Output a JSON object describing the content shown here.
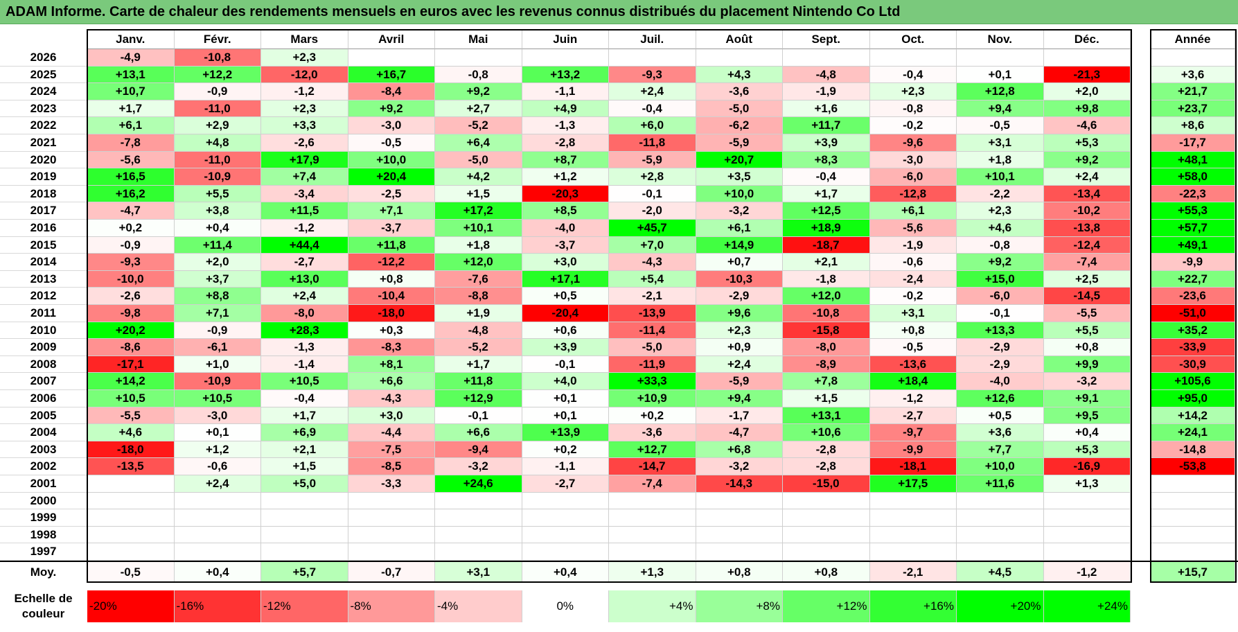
{
  "header": {
    "title": "ADAM Informe. Carte de chaleur des rendements mensuels en euros avec les revenus connus distribués du placement Nintendo Co Ltd"
  },
  "colors": {
    "green_max": "#00ff00",
    "red_max": "#ff0000",
    "title_bg": "#7ac97c"
  },
  "chart_data": {
    "type": "heatmap",
    "title": "ADAM Informe. Carte de chaleur des rendements mensuels en euros avec les revenus connus distribués du placement Nintendo Co Ltd",
    "months": [
      "Janv.",
      "Févr.",
      "Mars",
      "Avril",
      "Mai",
      "Juin",
      "Juil.",
      "Août",
      "Sept.",
      "Oct.",
      "Nov.",
      "Déc."
    ],
    "year_column_label": "Année",
    "rows": [
      {
        "year": "2026",
        "months": [
          "-4,9",
          "-10,8",
          "+2,3",
          "",
          "",
          "",
          "",
          "",
          "",
          "",
          "",
          ""
        ],
        "annual": ""
      },
      {
        "year": "2025",
        "months": [
          "+13,1",
          "+12,2",
          "-12,0",
          "+16,7",
          "-0,8",
          "+13,2",
          "-9,3",
          "+4,3",
          "-4,8",
          "-0,4",
          "+0,1",
          "-21,3"
        ],
        "annual": "+3,6"
      },
      {
        "year": "2024",
        "months": [
          "+10,7",
          "-0,9",
          "-1,2",
          "-8,4",
          "+9,2",
          "-1,1",
          "+2,4",
          "-3,6",
          "-1,9",
          "+2,3",
          "+12,8",
          "+2,0"
        ],
        "annual": "+21,7"
      },
      {
        "year": "2023",
        "months": [
          "+1,7",
          "-11,0",
          "+2,3",
          "+9,2",
          "+2,7",
          "+4,9",
          "-0,4",
          "-5,0",
          "+1,6",
          "-0,8",
          "+9,4",
          "+9,8"
        ],
        "annual": "+23,7"
      },
      {
        "year": "2022",
        "months": [
          "+6,1",
          "+2,9",
          "+3,3",
          "-3,0",
          "-5,2",
          "-1,3",
          "+6,0",
          "-6,2",
          "+11,7",
          "-0,2",
          "-0,5",
          "-4,6"
        ],
        "annual": "+8,6"
      },
      {
        "year": "2021",
        "months": [
          "-7,8",
          "+4,8",
          "-2,6",
          "-0,5",
          "+6,4",
          "-2,8",
          "-11,8",
          "-5,9",
          "+3,9",
          "-9,6",
          "+3,1",
          "+5,3"
        ],
        "annual": "-17,7"
      },
      {
        "year": "2020",
        "months": [
          "-5,6",
          "-11,0",
          "+17,9",
          "+10,0",
          "-5,0",
          "+8,7",
          "-5,9",
          "+20,7",
          "+8,3",
          "-3,0",
          "+1,8",
          "+9,2"
        ],
        "annual": "+48,1"
      },
      {
        "year": "2019",
        "months": [
          "+16,5",
          "-10,9",
          "+7,4",
          "+20,4",
          "+4,2",
          "+1,2",
          "+2,8",
          "+3,5",
          "-0,4",
          "-6,0",
          "+10,1",
          "+2,4"
        ],
        "annual": "+58,0"
      },
      {
        "year": "2018",
        "months": [
          "+16,2",
          "+5,5",
          "-3,4",
          "-2,5",
          "+1,5",
          "-20,3",
          "-0,1",
          "+10,0",
          "+1,7",
          "-12,8",
          "-2,2",
          "-13,4"
        ],
        "annual": "-22,3"
      },
      {
        "year": "2017",
        "months": [
          "-4,7",
          "+3,8",
          "+11,5",
          "+7,1",
          "+17,2",
          "+8,5",
          "-2,0",
          "-3,2",
          "+12,5",
          "+6,1",
          "+2,3",
          "-10,2"
        ],
        "annual": "+55,3"
      },
      {
        "year": "2016",
        "months": [
          "+0,2",
          "+0,4",
          "-1,2",
          "-3,7",
          "+10,1",
          "-4,0",
          "+45,7",
          "+6,1",
          "+18,9",
          "-5,6",
          "+4,6",
          "-13,8"
        ],
        "annual": "+57,7"
      },
      {
        "year": "2015",
        "months": [
          "-0,9",
          "+11,4",
          "+44,4",
          "+11,8",
          "+1,8",
          "-3,7",
          "+7,0",
          "+14,9",
          "-18,7",
          "-1,9",
          "-0,8",
          "-12,4"
        ],
        "annual": "+49,1"
      },
      {
        "year": "2014",
        "months": [
          "-9,3",
          "+2,0",
          "-2,7",
          "-12,2",
          "+12,0",
          "+3,0",
          "-4,3",
          "+0,7",
          "+2,1",
          "-0,6",
          "+9,2",
          "-7,4"
        ],
        "annual": "-9,9"
      },
      {
        "year": "2013",
        "months": [
          "-10,0",
          "+3,7",
          "+13,0",
          "+0,8",
          "-7,6",
          "+17,1",
          "+5,4",
          "-10,3",
          "-1,8",
          "-2,4",
          "+15,0",
          "+2,5"
        ],
        "annual": "+22,7"
      },
      {
        "year": "2012",
        "months": [
          "-2,6",
          "+8,8",
          "+2,4",
          "-10,4",
          "-8,8",
          "+0,5",
          "-2,1",
          "-2,9",
          "+12,0",
          "-0,2",
          "-6,0",
          "-14,5"
        ],
        "annual": "-23,6"
      },
      {
        "year": "2011",
        "months": [
          "-9,8",
          "+7,1",
          "-8,0",
          "-18,0",
          "+1,9",
          "-20,4",
          "-13,9",
          "+9,6",
          "-10,8",
          "+3,1",
          "-0,1",
          "-5,5"
        ],
        "annual": "-51,0"
      },
      {
        "year": "2010",
        "months": [
          "+20,2",
          "-0,9",
          "+28,3",
          "+0,3",
          "-4,8",
          "+0,6",
          "-11,4",
          "+2,3",
          "-15,8",
          "+0,8",
          "+13,3",
          "+5,5"
        ],
        "annual": "+35,2"
      },
      {
        "year": "2009",
        "months": [
          "-8,6",
          "-6,1",
          "-1,3",
          "-8,3",
          "-5,2",
          "+3,9",
          "-5,0",
          "+0,9",
          "-8,0",
          "-0,5",
          "-2,9",
          "+0,8"
        ],
        "annual": "-33,9"
      },
      {
        "year": "2008",
        "months": [
          "-17,1",
          "+1,0",
          "-1,4",
          "+8,1",
          "+1,7",
          "-0,1",
          "-11,9",
          "+2,4",
          "-8,9",
          "-13,6",
          "-2,9",
          "+9,9"
        ],
        "annual": "-30,9"
      },
      {
        "year": "2007",
        "months": [
          "+14,2",
          "-10,9",
          "+10,5",
          "+6,6",
          "+11,8",
          "+4,0",
          "+33,3",
          "-5,9",
          "+7,8",
          "+18,4",
          "-4,0",
          "-3,2"
        ],
        "annual": "+105,6"
      },
      {
        "year": "2006",
        "months": [
          "+10,5",
          "+10,5",
          "-0,4",
          "-4,3",
          "+12,9",
          "+0,1",
          "+10,9",
          "+9,4",
          "+1,5",
          "-1,2",
          "+12,6",
          "+9,1"
        ],
        "annual": "+95,0"
      },
      {
        "year": "2005",
        "months": [
          "-5,5",
          "-3,0",
          "+1,7",
          "+3,0",
          "-0,1",
          "+0,1",
          "+0,2",
          "-1,7",
          "+13,1",
          "-2,7",
          "+0,5",
          "+9,5"
        ],
        "annual": "+14,2"
      },
      {
        "year": "2004",
        "months": [
          "+4,6",
          "+0,1",
          "+6,9",
          "-4,4",
          "+6,6",
          "+13,9",
          "-3,6",
          "-4,7",
          "+10,6",
          "-9,7",
          "+3,6",
          "+0,4"
        ],
        "annual": "+24,1"
      },
      {
        "year": "2003",
        "months": [
          "-18,0",
          "+1,2",
          "+2,1",
          "-7,5",
          "-9,4",
          "+0,2",
          "+12,7",
          "+6,8",
          "-2,8",
          "-9,9",
          "+7,7",
          "+5,3"
        ],
        "annual": "-14,8"
      },
      {
        "year": "2002",
        "months": [
          "-13,5",
          "-0,6",
          "+1,5",
          "-8,5",
          "-3,2",
          "-1,1",
          "-14,7",
          "-3,2",
          "-2,8",
          "-18,1",
          "+10,0",
          "-16,9"
        ],
        "annual": "-53,8"
      },
      {
        "year": "2001",
        "months": [
          "",
          "+2,4",
          "+5,0",
          "-3,3",
          "+24,6",
          "-2,7",
          "-7,4",
          "-14,3",
          "-15,0",
          "+17,5",
          "+11,6",
          "+1,3"
        ],
        "annual": ""
      },
      {
        "year": "2000",
        "months": [
          "",
          "",
          "",
          "",
          "",
          "",
          "",
          "",
          "",
          "",
          "",
          ""
        ],
        "annual": ""
      },
      {
        "year": "1999",
        "months": [
          "",
          "",
          "",
          "",
          "",
          "",
          "",
          "",
          "",
          "",
          "",
          ""
        ],
        "annual": ""
      },
      {
        "year": "1998",
        "months": [
          "",
          "",
          "",
          "",
          "",
          "",
          "",
          "",
          "",
          "",
          "",
          ""
        ],
        "annual": ""
      },
      {
        "year": "1997",
        "months": [
          "",
          "",
          "",
          "",
          "",
          "",
          "",
          "",
          "",
          "",
          "",
          ""
        ],
        "annual": ""
      }
    ],
    "average": {
      "label": "Moy.",
      "months": [
        "-0,5",
        "+0,4",
        "+5,7",
        "-0,7",
        "+3,1",
        "+0,4",
        "+1,3",
        "+0,8",
        "+0,8",
        "-2,1",
        "+4,5",
        "-1,2"
      ],
      "annual": "+15,7"
    },
    "scale": {
      "label_line1": "Echelle de",
      "label_line2": "couleur",
      "labels": [
        "-20%",
        "-16%",
        "-12%",
        "-8%",
        "-4%",
        "0%",
        "+4%",
        "+8%",
        "+12%",
        "+16%",
        "+20%",
        "+24%"
      ],
      "values": [
        -20,
        -16,
        -12,
        -8,
        -4,
        0,
        4,
        8,
        12,
        16,
        20,
        24
      ]
    }
  }
}
